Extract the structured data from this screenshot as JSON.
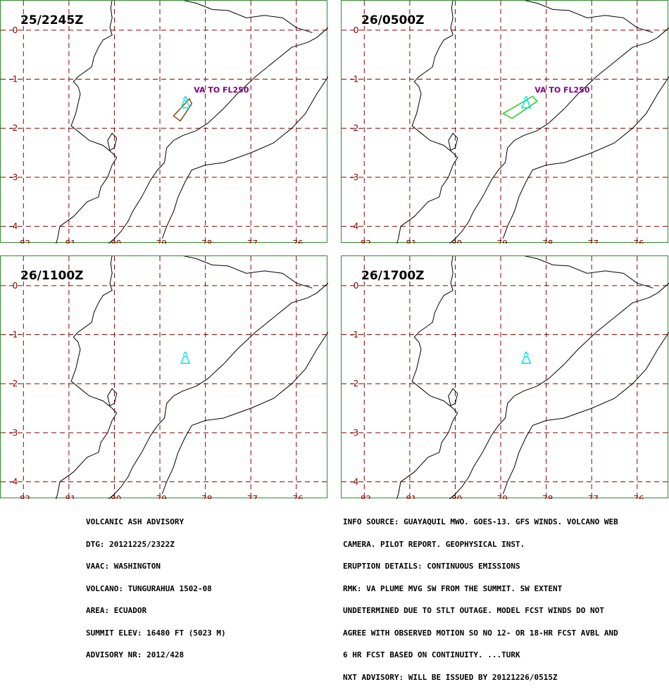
{
  "panels": [
    {
      "title": "25/2245Z",
      "label": "VA TO FL250",
      "polygon_color": "#8b4513",
      "polygon": [
        [
          -78.7,
          -1.75
        ],
        [
          -78.35,
          -1.4
        ],
        [
          -78.3,
          -1.5
        ],
        [
          -78.55,
          -1.85
        ]
      ]
    },
    {
      "title": "26/0500Z",
      "label": "VA TO FL250",
      "polygon_color": "#22cc22",
      "polygon": [
        [
          -78.95,
          -1.7
        ],
        [
          -78.3,
          -1.35
        ],
        [
          -78.2,
          -1.45
        ],
        [
          -78.75,
          -1.8
        ]
      ]
    },
    {
      "title": "26/1100Z",
      "label": "",
      "polygon_color": "",
      "polygon": []
    },
    {
      "title": "26/1700Z",
      "label": "",
      "polygon_color": "",
      "polygon": []
    }
  ],
  "axes": {
    "x_ticks": [
      "-82",
      "-81",
      "-80",
      "-79",
      "-78",
      "-77",
      "-76"
    ],
    "y_ticks": [
      "0",
      "-1",
      "-2",
      "-3",
      "-4"
    ],
    "lon_range": [
      -82.5,
      -75.3
    ],
    "lat_range": [
      -4.35,
      0.6
    ]
  },
  "volcano": {
    "lon": -78.44,
    "lat": -1.47,
    "color": "#00e5e5"
  },
  "colors": {
    "grid": "#8b0000",
    "label": "#800080",
    "frame": "#2e8b2e"
  },
  "advisory_left": [
    "VOLCANIC ASH ADVISORY",
    "DTG: 20121225/2322Z",
    "VAAC: WASHINGTON",
    "VOLCANO: TUNGURAHUA 1502-08",
    "AREA: ECUADOR",
    "SUMMIT ELEV: 16480 FT (5023 M)",
    "ADVISORY NR: 2012/428"
  ],
  "advisory_right": [
    "INFO SOURCE: GUAYAQUIL MWO. GOES-13. GFS WINDS. VOLCANO WEB",
    "CAMERA. PILOT REPORT. GEOPHYSICAL INST.",
    "ERUPTION DETAILS: CONTINUOUS EMISSIONS",
    "RMK: VA PLUME MVG SW FROM THE SUMMIT. SW EXTENT",
    "UNDETERMINED DUE TO STLT OUTAGE. MODEL FCST WINDS DO NOT",
    "AGREE WITH OBSERVED MOTION SO NO 12- OR 18-HR FCST AVBL AND",
    "6 HR FCST BASED ON CONTINUITY. ...TURK",
    "NXT ADVISORY: WILL BE ISSUED BY 20121226/0515Z"
  ]
}
